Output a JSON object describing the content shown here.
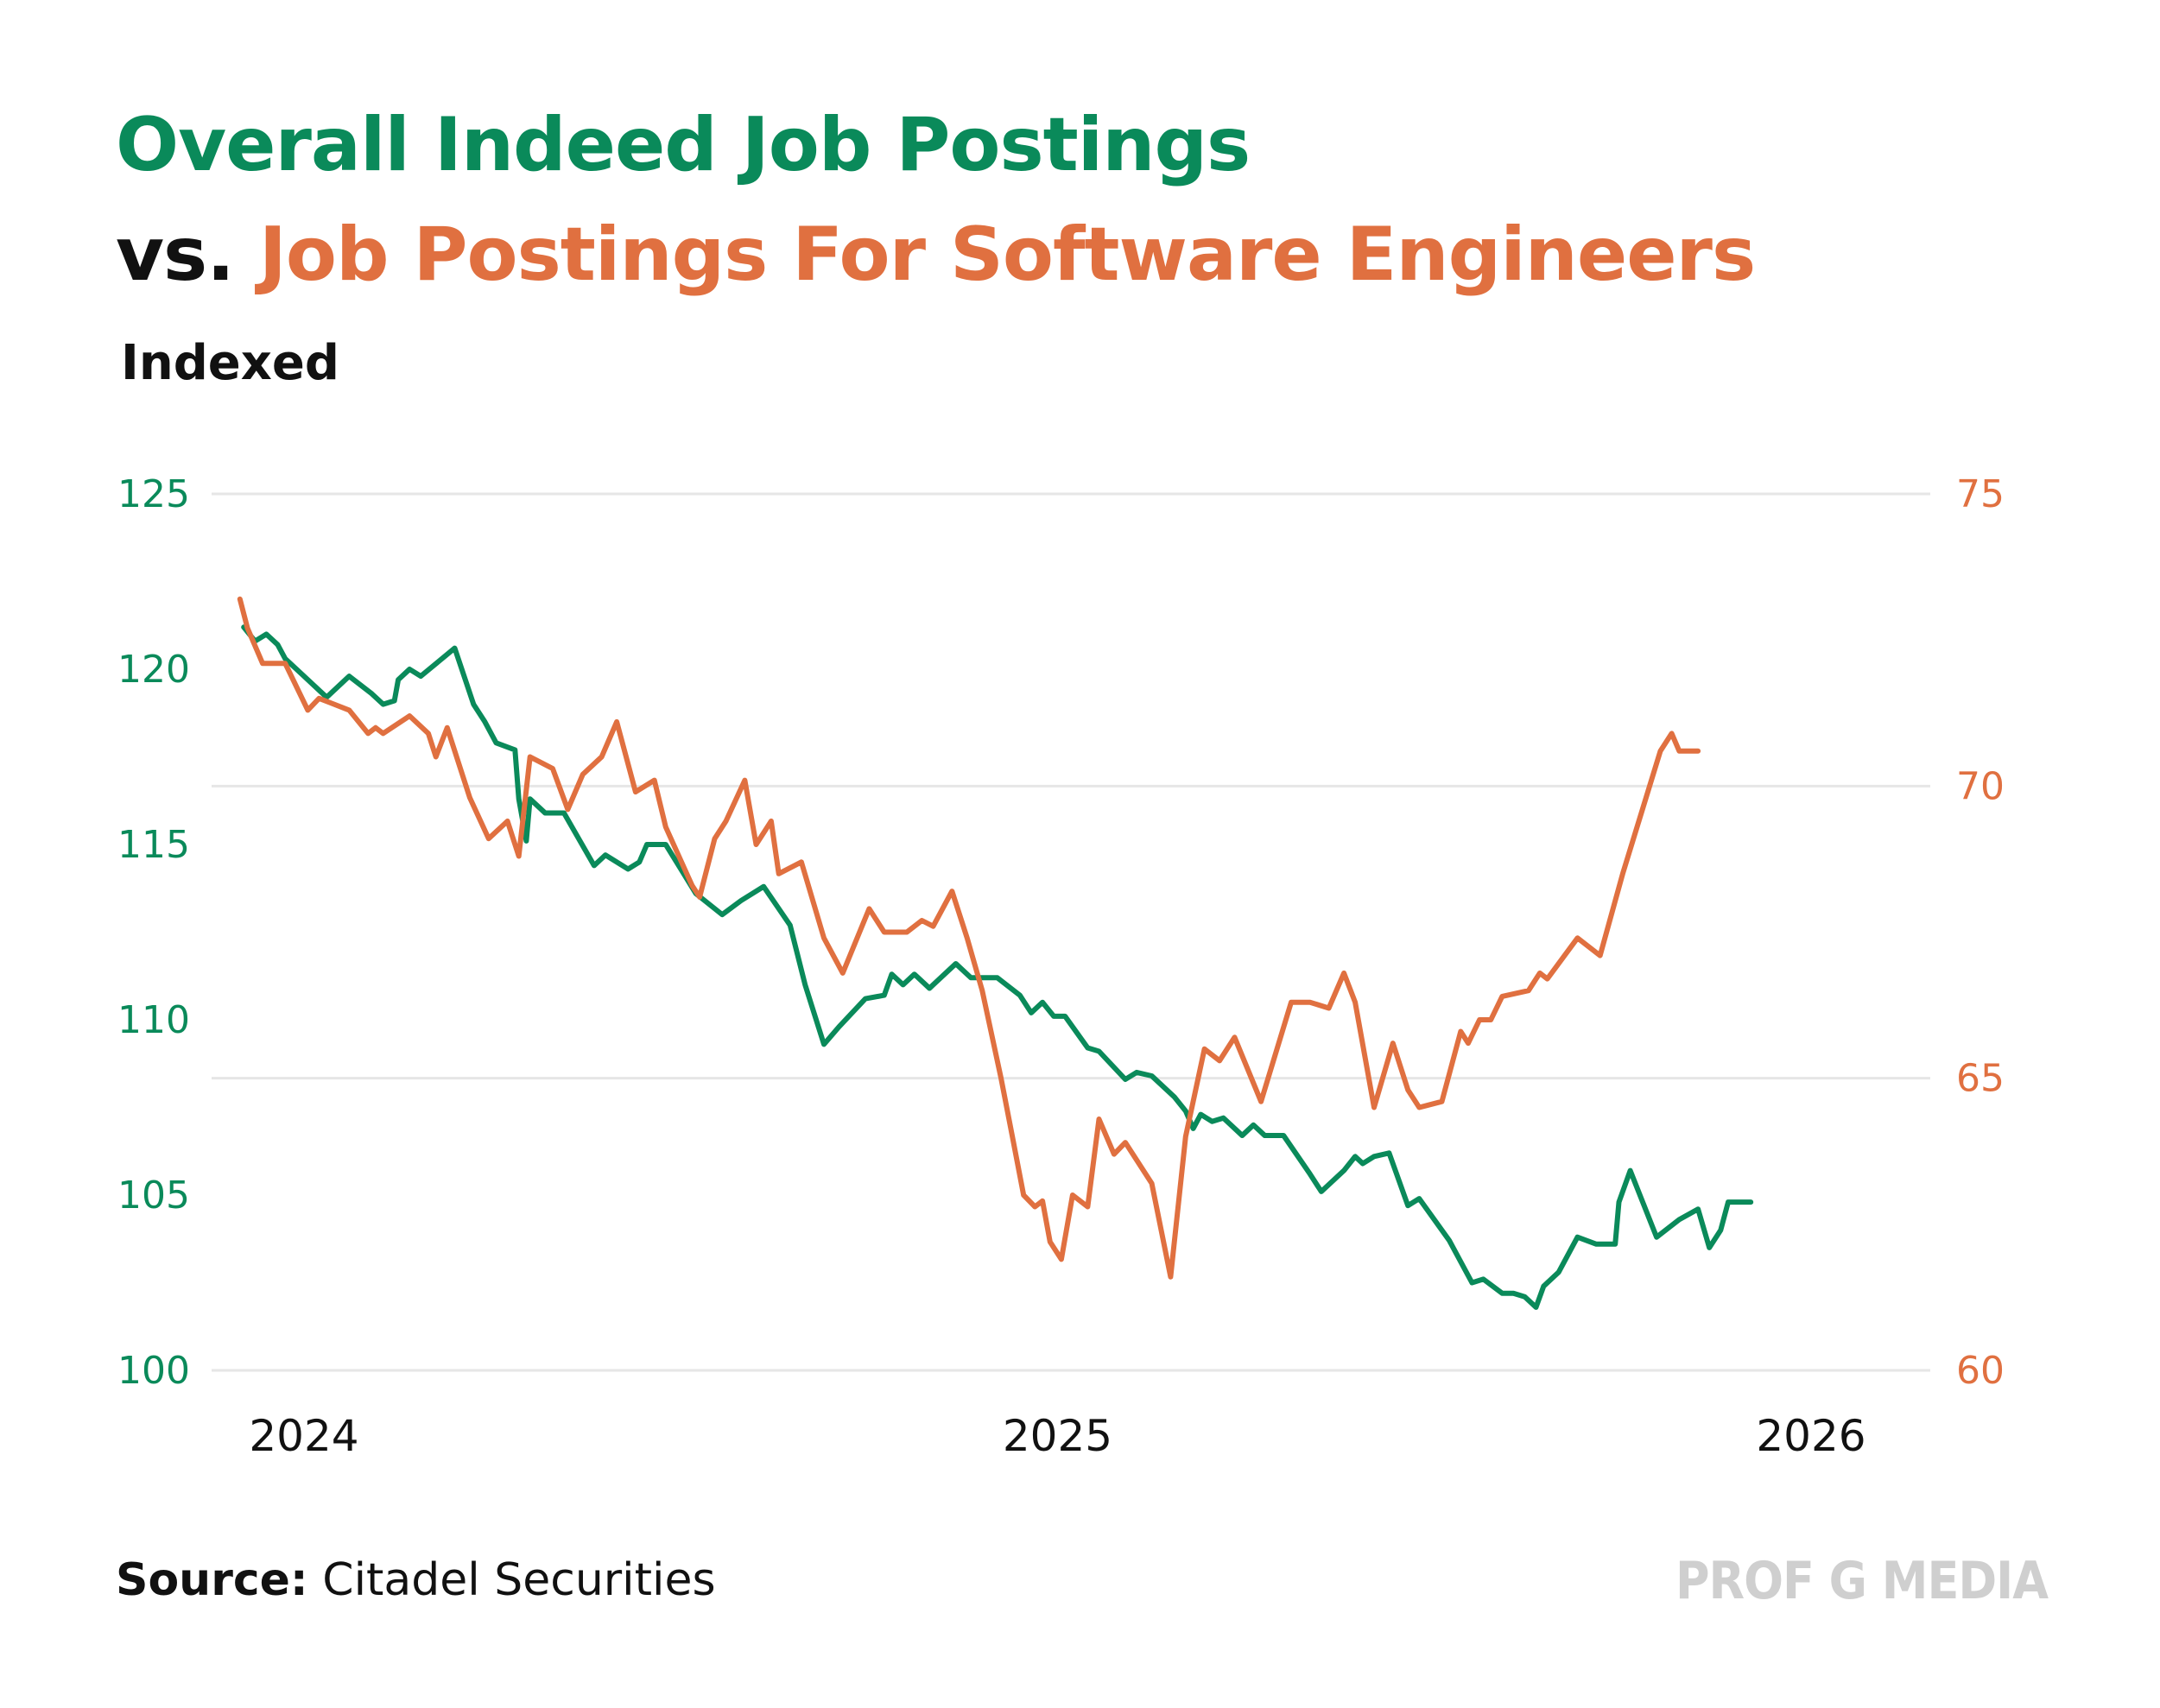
{
  "title": {
    "part1": "Overall Indeed Job Postings",
    "part2_prefix": "vs.",
    "part2_main": "Job Postings For Software Engineers"
  },
  "subtitle": "Indexed",
  "source": {
    "label": "Source:",
    "text": "Citadel Securities"
  },
  "watermark": "PROF G MEDIA",
  "colors": {
    "overall": "#0a8a5a",
    "software": "#e07040",
    "vs": "#111111",
    "grid": "#e6e6e6"
  },
  "chart_data": {
    "type": "line",
    "title": "Overall Indeed Job Postings vs. Job Postings For Software Engineers",
    "subtitle": "Indexed",
    "x_axis": {
      "range": [
        2023.95,
        2026.12
      ],
      "ticks": [
        2024,
        2025,
        2026
      ]
    },
    "y_left": {
      "range": [
        100,
        125
      ],
      "ticks": [
        100,
        105,
        110,
        115,
        120,
        125
      ]
    },
    "y_right": {
      "range": [
        60,
        75
      ],
      "ticks": [
        60,
        65,
        70,
        75
      ]
    },
    "grid": "horizontal",
    "series": [
      {
        "axis": "left",
        "color": "#0a8a5a",
        "points": [
          [
            2023.92,
            121.2
          ],
          [
            2023.935,
            120.8
          ],
          [
            2023.95,
            121.0
          ],
          [
            2023.965,
            120.7
          ],
          [
            2023.975,
            120.3
          ],
          [
            2024.0,
            119.8
          ],
          [
            2024.03,
            119.2
          ],
          [
            2024.06,
            119.8
          ],
          [
            2024.09,
            119.3
          ],
          [
            2024.105,
            119.0
          ],
          [
            2024.12,
            119.1
          ],
          [
            2024.125,
            119.7
          ],
          [
            2024.14,
            120.0
          ],
          [
            2024.155,
            119.8
          ],
          [
            2024.2,
            120.6
          ],
          [
            2024.225,
            119.0
          ],
          [
            2024.24,
            118.5
          ],
          [
            2024.255,
            117.9
          ],
          [
            2024.28,
            117.7
          ],
          [
            2024.285,
            116.3
          ],
          [
            2024.295,
            115.1
          ],
          [
            2024.3,
            116.3
          ],
          [
            2024.32,
            115.9
          ],
          [
            2024.345,
            115.9
          ],
          [
            2024.385,
            114.4
          ],
          [
            2024.4,
            114.7
          ],
          [
            2024.43,
            114.3
          ],
          [
            2024.445,
            114.5
          ],
          [
            2024.455,
            115.0
          ],
          [
            2024.48,
            115.0
          ],
          [
            2024.5,
            114.3
          ],
          [
            2024.52,
            113.6
          ],
          [
            2024.555,
            113.0
          ],
          [
            2024.58,
            113.4
          ],
          [
            2024.61,
            113.8
          ],
          [
            2024.645,
            112.7
          ],
          [
            2024.665,
            111.0
          ],
          [
            2024.69,
            109.3
          ],
          [
            2024.71,
            109.8
          ],
          [
            2024.745,
            110.6
          ],
          [
            2024.77,
            110.7
          ],
          [
            2024.78,
            111.3
          ],
          [
            2024.795,
            111.0
          ],
          [
            2024.81,
            111.3
          ],
          [
            2024.83,
            110.9
          ],
          [
            2024.865,
            111.6
          ],
          [
            2024.885,
            111.2
          ],
          [
            2024.92,
            111.2
          ],
          [
            2024.95,
            110.7
          ],
          [
            2024.965,
            110.2
          ],
          [
            2024.98,
            110.5
          ],
          [
            2024.995,
            110.1
          ],
          [
            2025.01,
            110.1
          ],
          [
            2025.04,
            109.2
          ],
          [
            2025.055,
            109.1
          ],
          [
            2025.09,
            108.3
          ],
          [
            2025.105,
            108.5
          ],
          [
            2025.125,
            108.4
          ],
          [
            2025.155,
            107.8
          ],
          [
            2025.17,
            107.4
          ],
          [
            2025.18,
            106.9
          ],
          [
            2025.19,
            107.3
          ],
          [
            2025.205,
            107.1
          ],
          [
            2025.22,
            107.2
          ],
          [
            2025.245,
            106.7
          ],
          [
            2025.26,
            107.0
          ],
          [
            2025.275,
            106.7
          ],
          [
            2025.3,
            106.7
          ],
          [
            2025.335,
            105.6
          ],
          [
            2025.35,
            105.1
          ],
          [
            2025.38,
            105.7
          ],
          [
            2025.395,
            106.1
          ],
          [
            2025.405,
            105.9
          ],
          [
            2025.42,
            106.1
          ],
          [
            2025.44,
            106.2
          ],
          [
            2025.465,
            104.7
          ],
          [
            2025.48,
            104.9
          ],
          [
            2025.52,
            103.7
          ],
          [
            2025.55,
            102.5
          ],
          [
            2025.565,
            102.6
          ],
          [
            2025.59,
            102.2
          ],
          [
            2025.605,
            102.2
          ],
          [
            2025.62,
            102.1
          ],
          [
            2025.635,
            101.8
          ],
          [
            2025.645,
            102.4
          ],
          [
            2025.665,
            102.8
          ],
          [
            2025.69,
            103.8
          ],
          [
            2025.715,
            103.6
          ],
          [
            2025.74,
            103.6
          ],
          [
            2025.745,
            104.8
          ],
          [
            2025.76,
            105.7
          ],
          [
            2025.795,
            103.8
          ],
          [
            2025.825,
            104.3
          ],
          [
            2025.85,
            104.6
          ],
          [
            2025.865,
            103.5
          ],
          [
            2025.88,
            104.0
          ],
          [
            2025.89,
            104.8
          ],
          [
            2025.92,
            104.8
          ]
        ]
      },
      {
        "axis": "right",
        "color": "#e07040",
        "points": [
          [
            2023.915,
            73.2
          ],
          [
            2023.925,
            72.7
          ],
          [
            2023.945,
            72.1
          ],
          [
            2023.975,
            72.1
          ],
          [
            2024.005,
            71.3
          ],
          [
            2024.02,
            71.5
          ],
          [
            2024.06,
            71.3
          ],
          [
            2024.085,
            70.9
          ],
          [
            2024.095,
            71.0
          ],
          [
            2024.105,
            70.9
          ],
          [
            2024.14,
            71.2
          ],
          [
            2024.165,
            70.9
          ],
          [
            2024.175,
            70.5
          ],
          [
            2024.19,
            71.0
          ],
          [
            2024.22,
            69.8
          ],
          [
            2024.245,
            69.1
          ],
          [
            2024.27,
            69.4
          ],
          [
            2024.285,
            68.8
          ],
          [
            2024.3,
            70.5
          ],
          [
            2024.33,
            70.3
          ],
          [
            2024.35,
            69.6
          ],
          [
            2024.37,
            70.2
          ],
          [
            2024.395,
            70.5
          ],
          [
            2024.415,
            71.1
          ],
          [
            2024.44,
            69.9
          ],
          [
            2024.465,
            70.1
          ],
          [
            2024.48,
            69.3
          ],
          [
            2024.515,
            68.3
          ],
          [
            2024.525,
            68.1
          ],
          [
            2024.545,
            69.1
          ],
          [
            2024.56,
            69.4
          ],
          [
            2024.585,
            70.1
          ],
          [
            2024.6,
            69.0
          ],
          [
            2024.62,
            69.4
          ],
          [
            2024.63,
            68.5
          ],
          [
            2024.66,
            68.7
          ],
          [
            2024.69,
            67.4
          ],
          [
            2024.715,
            66.8
          ],
          [
            2024.75,
            67.9
          ],
          [
            2024.77,
            67.5
          ],
          [
            2024.8,
            67.5
          ],
          [
            2024.82,
            67.7
          ],
          [
            2024.835,
            67.6
          ],
          [
            2024.86,
            68.2
          ],
          [
            2024.88,
            67.4
          ],
          [
            2024.9,
            66.5
          ],
          [
            2024.925,
            65.0
          ],
          [
            2024.94,
            64.0
          ],
          [
            2024.955,
            63.0
          ],
          [
            2024.97,
            62.8
          ],
          [
            2024.98,
            62.9
          ],
          [
            2024.99,
            62.2
          ],
          [
            2025.005,
            61.9
          ],
          [
            2025.02,
            63.0
          ],
          [
            2025.04,
            62.8
          ],
          [
            2025.055,
            64.3
          ],
          [
            2025.075,
            63.7
          ],
          [
            2025.09,
            63.9
          ],
          [
            2025.125,
            63.2
          ],
          [
            2025.15,
            61.6
          ],
          [
            2025.17,
            64.0
          ],
          [
            2025.195,
            65.5
          ],
          [
            2025.215,
            65.3
          ],
          [
            2025.235,
            65.7
          ],
          [
            2025.27,
            64.6
          ],
          [
            2025.31,
            66.3
          ],
          [
            2025.335,
            66.3
          ],
          [
            2025.36,
            66.2
          ],
          [
            2025.38,
            66.8
          ],
          [
            2025.395,
            66.3
          ],
          [
            2025.42,
            64.5
          ],
          [
            2025.445,
            65.6
          ],
          [
            2025.465,
            64.8
          ],
          [
            2025.48,
            64.5
          ],
          [
            2025.51,
            64.6
          ],
          [
            2025.535,
            65.8
          ],
          [
            2025.545,
            65.6
          ],
          [
            2025.56,
            66.0
          ],
          [
            2025.575,
            66.0
          ],
          [
            2025.59,
            66.4
          ],
          [
            2025.625,
            66.5
          ],
          [
            2025.64,
            66.8
          ],
          [
            2025.65,
            66.7
          ],
          [
            2025.69,
            67.4
          ],
          [
            2025.72,
            67.1
          ],
          [
            2025.75,
            68.5
          ],
          [
            2025.8,
            70.6
          ],
          [
            2025.815,
            70.9
          ],
          [
            2025.825,
            70.6
          ],
          [
            2025.85,
            70.6
          ]
        ]
      }
    ]
  }
}
